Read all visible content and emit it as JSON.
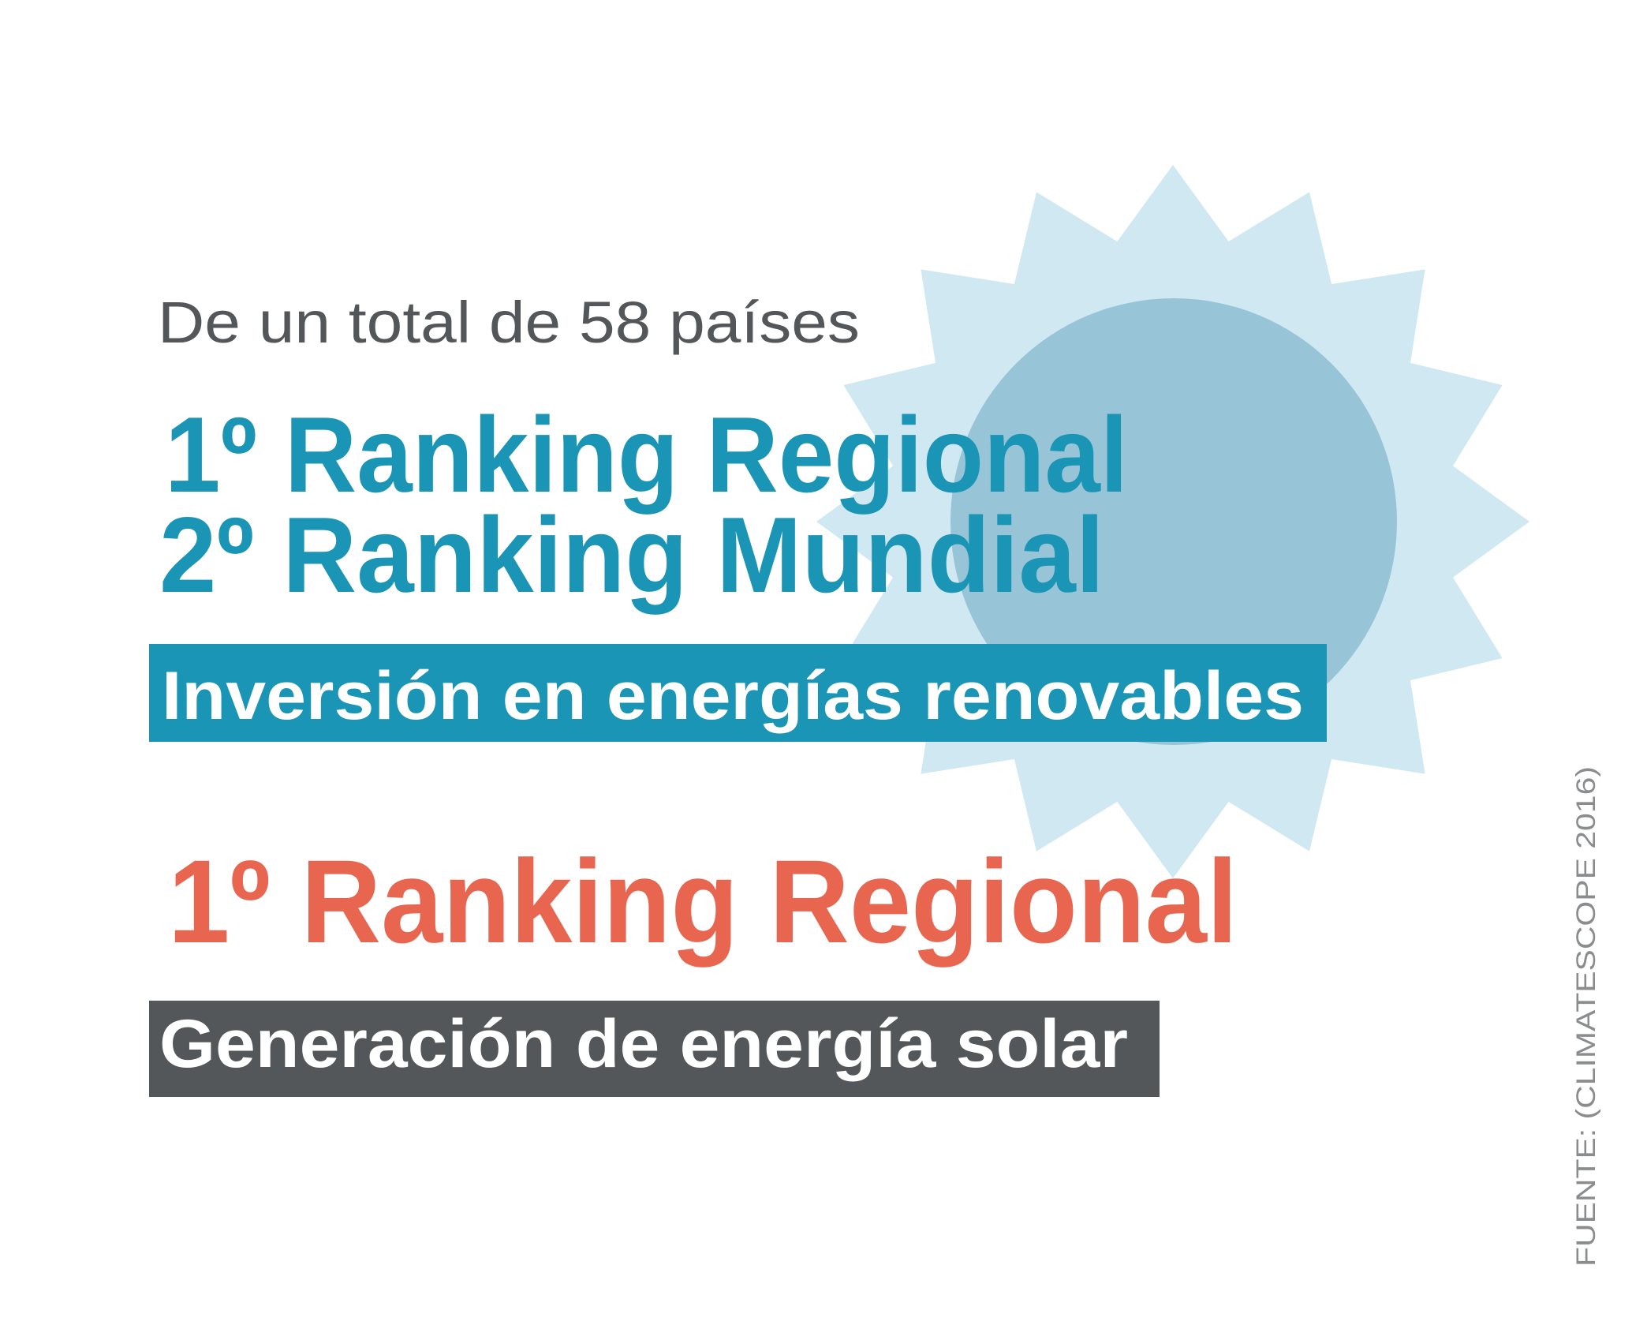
{
  "intro": "De un total de 58 países",
  "investment": {
    "rank_regional": "1º Ranking Regional",
    "rank_world": "2º Ranking Mundial",
    "label": "Inversión en energías renovables"
  },
  "solar": {
    "rank_regional": "1º Ranking Regional",
    "label": "Generación de energía solar"
  },
  "source": "FUENTE: (CLIMATESCOPE 2016)"
}
